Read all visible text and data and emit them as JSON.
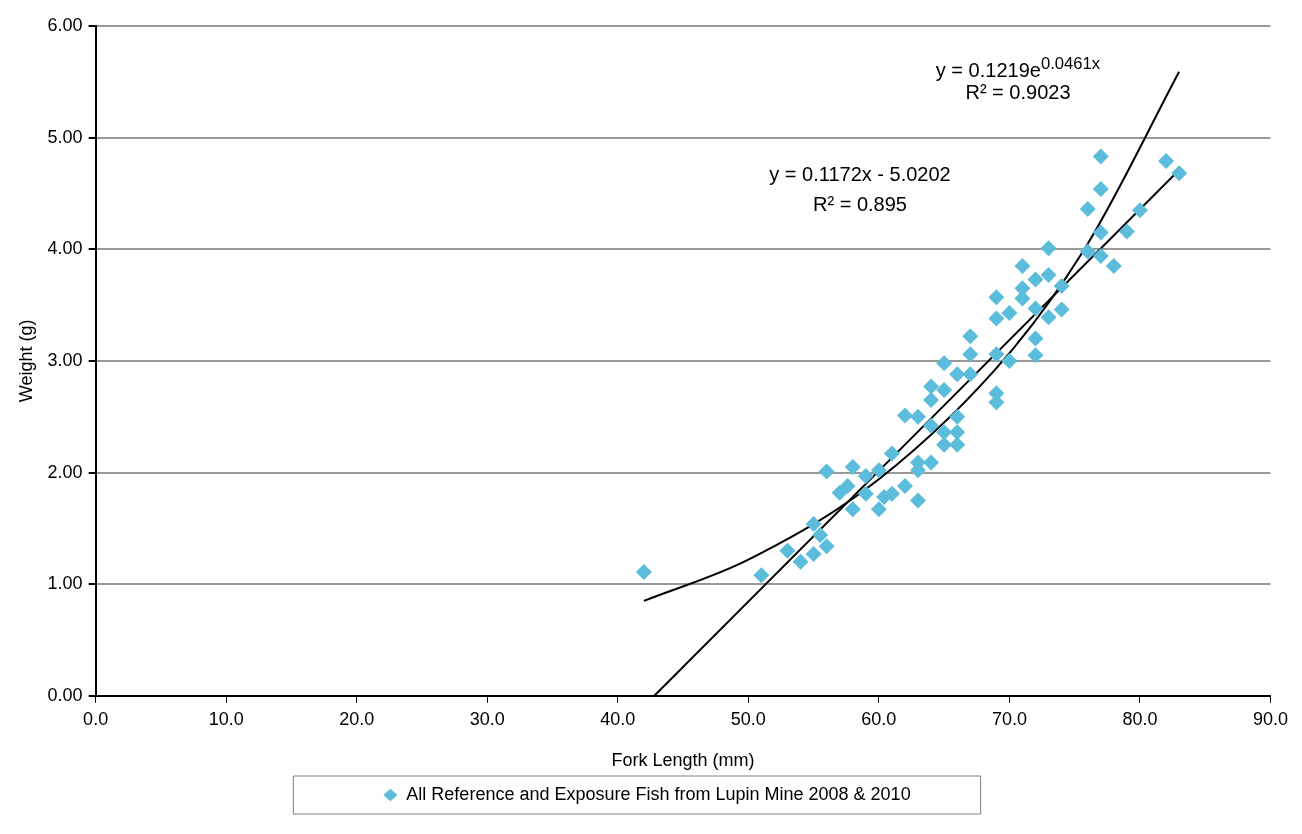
{
  "chart_data": {
    "type": "scatter",
    "xlabel": "Fork Length (mm)",
    "ylabel": "Weight (g)",
    "xlim": [
      0,
      90
    ],
    "xticks": [
      {
        "value": 0,
        "label": "0.0"
      },
      {
        "value": 10,
        "label": "10.0"
      },
      {
        "value": 20,
        "label": "20.0"
      },
      {
        "value": 30,
        "label": "30.0"
      },
      {
        "value": 40,
        "label": "40.0"
      },
      {
        "value": 50,
        "label": "50.0"
      },
      {
        "value": 60,
        "label": "60.0"
      },
      {
        "value": 70,
        "label": "70.0"
      },
      {
        "value": 80,
        "label": "80.0"
      },
      {
        "value": 90,
        "label": "90.0"
      }
    ],
    "ylim": [
      0,
      6
    ],
    "yticks": [
      {
        "value": 0,
        "label": "0.00"
      },
      {
        "value": 1,
        "label": "1.00"
      },
      {
        "value": 2,
        "label": "2.00"
      },
      {
        "value": 3,
        "label": "3.00"
      },
      {
        "value": 4,
        "label": "4.00"
      },
      {
        "value": 5,
        "label": "5.00"
      },
      {
        "value": 6,
        "label": "6.00"
      }
    ],
    "grid": "y",
    "legend": "bottom",
    "marker": "diamond",
    "series": [
      {
        "name": "All Reference and Exposure Fish from Lupin Mine 2008 & 2010",
        "color": "#5bbcdc",
        "x": [
          42,
          51,
          53,
          54,
          55,
          55,
          55.5,
          56,
          56,
          57,
          58,
          58,
          57.6,
          59,
          59,
          60,
          60,
          60.4,
          61,
          61,
          62,
          62,
          63,
          63,
          63,
          63,
          64,
          64,
          64,
          64,
          65,
          65,
          65,
          65,
          66,
          66,
          66,
          66,
          67,
          67,
          67,
          69,
          69,
          69,
          69,
          69,
          70,
          70,
          71,
          71,
          71,
          72,
          72,
          72,
          72,
          73,
          73,
          73,
          74,
          74,
          76,
          76,
          77,
          77,
          77,
          77,
          78,
          79,
          80,
          82,
          83
        ],
        "values": [
          1.11,
          1.08,
          1.3,
          1.2,
          1.27,
          1.54,
          1.44,
          1.34,
          2.01,
          1.82,
          2.05,
          1.67,
          1.88,
          1.97,
          1.81,
          2.02,
          1.67,
          1.78,
          1.81,
          2.17,
          2.51,
          1.88,
          1.75,
          2.09,
          2.02,
          2.5,
          2.42,
          2.77,
          2.65,
          2.09,
          2.98,
          2.74,
          2.36,
          2.25,
          2.88,
          2.5,
          2.36,
          2.25,
          3.22,
          3.06,
          2.88,
          3.57,
          3.38,
          3.06,
          2.71,
          2.63,
          3.43,
          3.0,
          3.85,
          3.65,
          3.56,
          3.73,
          3.47,
          3.2,
          3.05,
          4.01,
          3.77,
          3.39,
          3.67,
          3.46,
          3.98,
          4.36,
          4.83,
          4.54,
          4.15,
          3.94,
          3.85,
          4.16,
          4.35,
          4.79,
          4.68
        ]
      },
      {
        "type": "line",
        "color": "#000000",
        "marker": "none",
        "x": [
          42,
          50,
          60,
          70,
          76,
          83
        ],
        "values": [
          0.85,
          1.22,
          1.94,
          3.07,
          4.05,
          5.59
        ]
      },
      {
        "type": "line",
        "color": "#000000",
        "marker": "none",
        "x": [
          42.8,
          83
        ],
        "values": [
          0,
          4.71
        ]
      }
    ],
    "annotations": [
      "y = 0.1219e$^{0.0461x}$",
      "R² = 0.9023",
      "y = 0.1172x - 5.0202",
      "R² = 0.895"
    ]
  }
}
